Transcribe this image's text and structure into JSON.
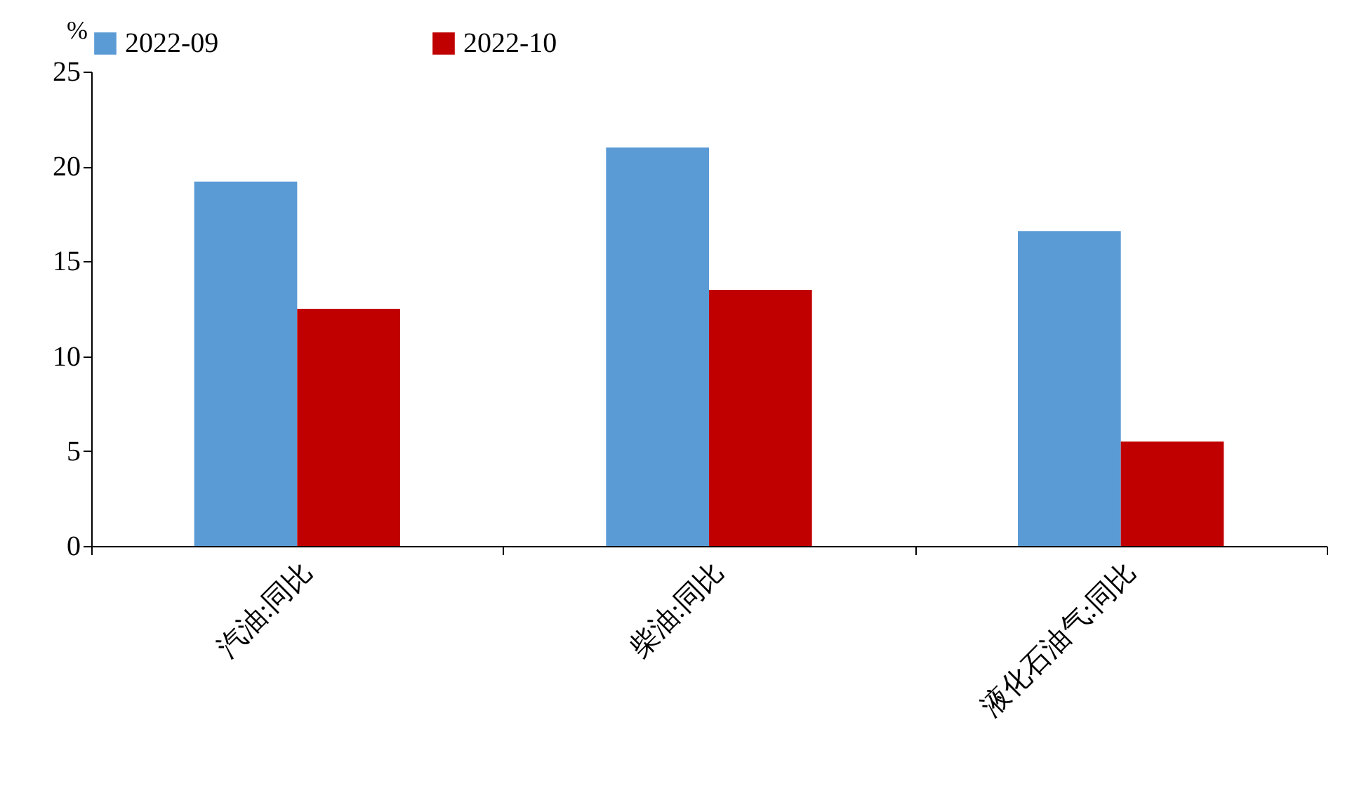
{
  "chart_data": {
    "type": "bar",
    "ylabel": "%",
    "categories": [
      "汽油:同比",
      "柴油:同比",
      "液化石油气:同比"
    ],
    "series": [
      {
        "name": "2022-09",
        "color": "#5b9bd5",
        "values": [
          19.2,
          21.0,
          16.6
        ]
      },
      {
        "name": "2022-10",
        "color": "#c00000",
        "values": [
          12.5,
          13.5,
          5.5
        ]
      }
    ],
    "ylim": [
      0,
      25
    ],
    "yticks": [
      0,
      5,
      10,
      15,
      20,
      25
    ],
    "grid": false,
    "legend": "top"
  }
}
